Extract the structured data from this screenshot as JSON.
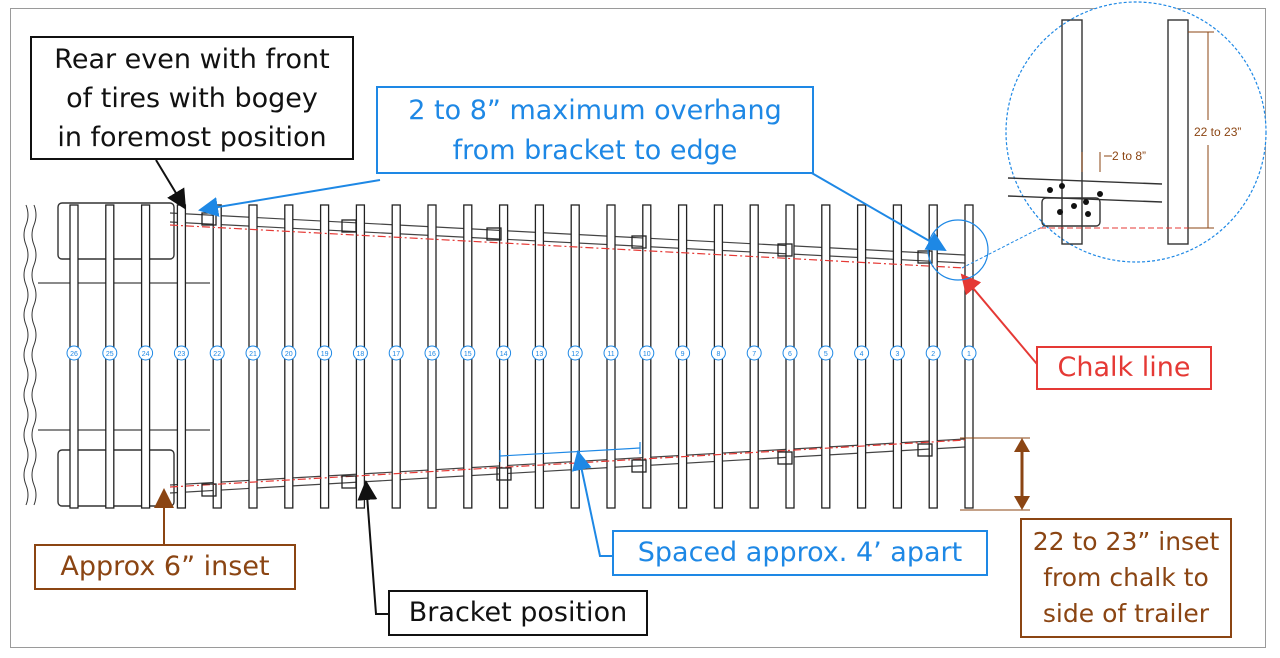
{
  "callouts": {
    "rear_note": [
      "Rear even with front",
      "of tires with bogey",
      "in foremost position"
    ],
    "overhang_note": [
      "2 to 8” maximum overhang",
      "from bracket to edge"
    ],
    "chalk_note": "Chalk line",
    "inset6_note": "Approx 6” inset",
    "spaced_note": "Spaced approx. 4’ apart",
    "inset22_note": [
      "22 to 23” inset",
      "from chalk to",
      "side of trailer"
    ],
    "bracket_note": "Bracket position"
  },
  "detail": {
    "height_label": "22 to 23”",
    "overhang_label": "2 to 8”"
  },
  "crossmember_numbers": [
    "26",
    "25",
    "24",
    "23",
    "22",
    "21",
    "20",
    "19",
    "18",
    "17",
    "16",
    "15",
    "14",
    "13",
    "12",
    "11",
    "10",
    "9",
    "8",
    "7",
    "6",
    "5",
    "4",
    "3",
    "2",
    "1"
  ],
  "colors": {
    "black": "#111111",
    "blue": "#1e88e5",
    "red": "#e53935",
    "brown": "#8b4513"
  }
}
